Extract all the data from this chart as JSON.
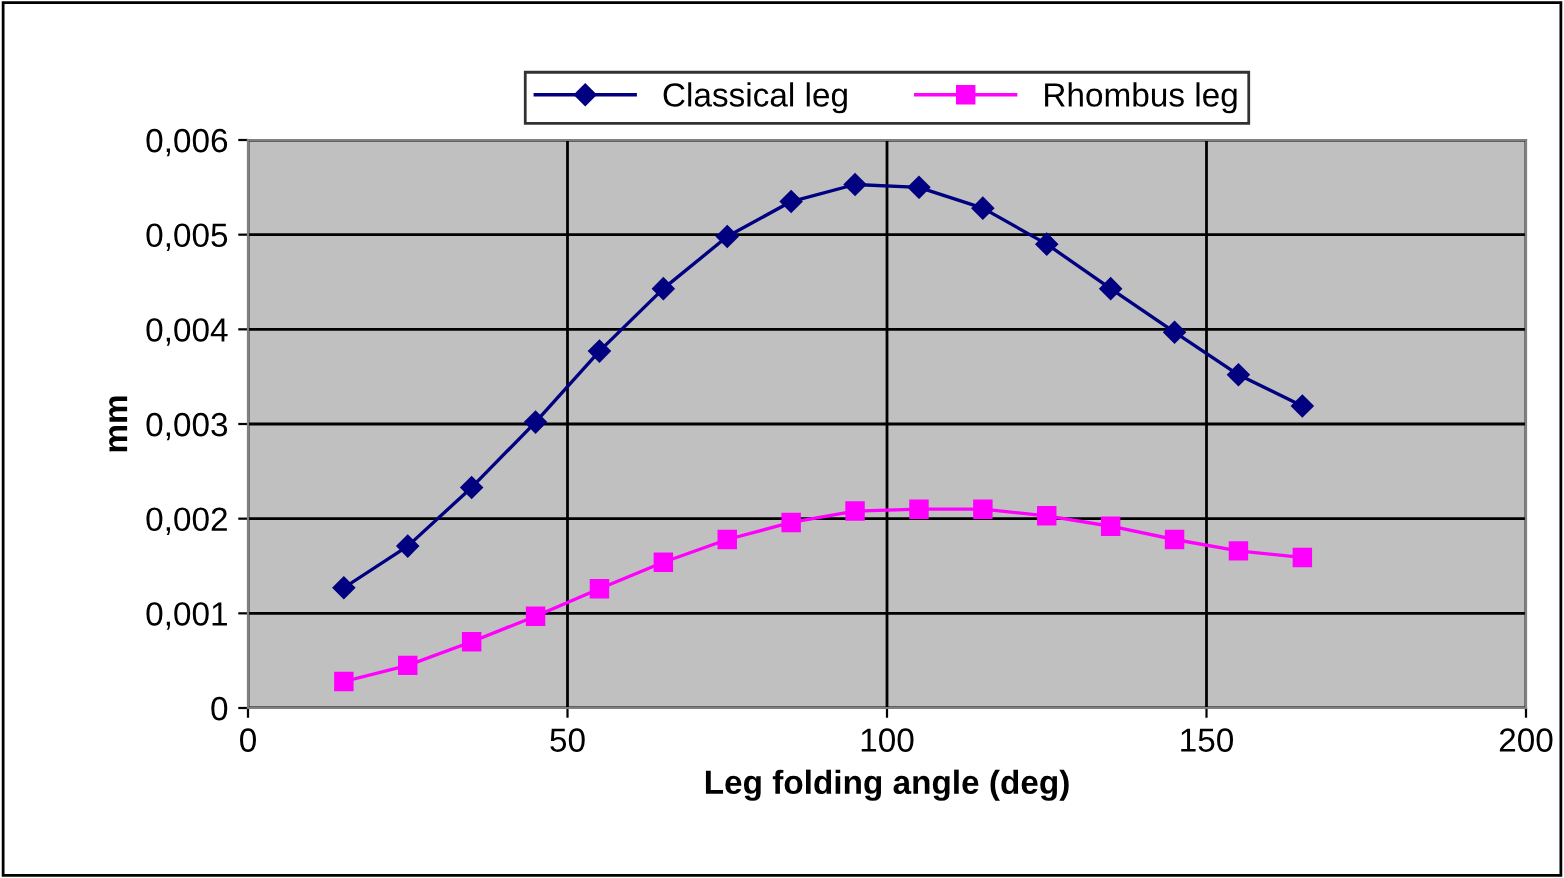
{
  "chart_data": {
    "type": "line",
    "xlabel": "Leg folding angle (deg)",
    "ylabel": "mm",
    "x": [
      15,
      25,
      35,
      45,
      55,
      65,
      75,
      85,
      95,
      105,
      115,
      125,
      135,
      145,
      155,
      165
    ],
    "series": [
      {
        "name": "Classical leg",
        "color": "#000080",
        "marker": "diamond",
        "values": [
          0.00127,
          0.00171,
          0.00233,
          0.00302,
          0.00377,
          0.00443,
          0.00498,
          0.00535,
          0.00553,
          0.0055,
          0.00528,
          0.0049,
          0.00443,
          0.00397,
          0.00352,
          0.00319
        ]
      },
      {
        "name": "Rhombus leg",
        "color": "#ff00ff",
        "marker": "square",
        "values": [
          0.00028,
          0.00045,
          0.0007,
          0.00097,
          0.00126,
          0.00154,
          0.00178,
          0.00196,
          0.00208,
          0.0021,
          0.0021,
          0.00203,
          0.00192,
          0.00178,
          0.00166,
          0.00159
        ]
      }
    ],
    "xlim": [
      0,
      200
    ],
    "xticks": [
      0,
      50,
      100,
      150,
      200
    ],
    "ylim": [
      0,
      0.006
    ],
    "yticks": [
      {
        "value": 0,
        "label": "0"
      },
      {
        "value": 0.001,
        "label": "0,001"
      },
      {
        "value": 0.002,
        "label": "0,002"
      },
      {
        "value": 0.003,
        "label": "0,003"
      },
      {
        "value": 0.004,
        "label": "0,004"
      },
      {
        "value": 0.005,
        "label": "0,005"
      },
      {
        "value": 0.006,
        "label": "0,006"
      }
    ],
    "grid": true,
    "legend": "top",
    "line_style": "solid"
  }
}
